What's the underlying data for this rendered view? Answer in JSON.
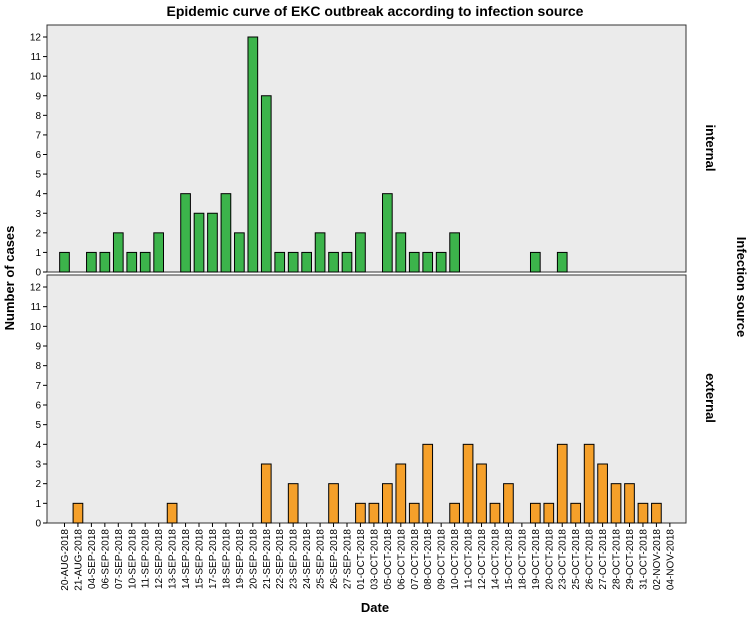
{
  "chart_data": {
    "type": "bar",
    "title": "Epidemic curve of EKC outbreak according to infection source",
    "xlabel": "Date",
    "ylabel": "Number of cases",
    "facet_label": "Infection source",
    "ylim": [
      0,
      12
    ],
    "yticks": [
      0,
      1,
      2,
      3,
      4,
      5,
      6,
      7,
      8,
      9,
      10,
      11,
      12
    ],
    "grid": false,
    "categories": [
      "20-AUG-2018",
      "21-AUG-2018",
      "04-SEP-2018",
      "06-SEP-2018",
      "07-SEP-2018",
      "10-SEP-2018",
      "11-SEP-2018",
      "12-SEP-2018",
      "13-SEP-2018",
      "14-SEP-2018",
      "15-SEP-2018",
      "17-SEP-2018",
      "18-SEP-2018",
      "19-SEP-2018",
      "20-SEP-2018",
      "21-SEP-2018",
      "22-SEP-2018",
      "23-SEP-2018",
      "24-SEP-2018",
      "25-SEP-2018",
      "26-SEP-2018",
      "27-SEP-2018",
      "01-OCT-2018",
      "03-OCT-2018",
      "05-OCT-2018",
      "06-OCT-2018",
      "07-OCT-2018",
      "08-OCT-2018",
      "09-OCT-2018",
      "10-OCT-2018",
      "11-OCT-2018",
      "12-OCT-2018",
      "14-OCT-2018",
      "15-OCT-2018",
      "18-OCT-2018",
      "19-OCT-2018",
      "20-OCT-2018",
      "23-OCT-2018",
      "25-OCT-2018",
      "26-OCT-2018",
      "27-OCT-2018",
      "28-OCT-2018",
      "29-OCT-2018",
      "31-OCT-2018",
      "02-NOV-2018",
      "04-NOV-2018"
    ],
    "series": [
      {
        "name": "internal",
        "color": "#3cb44b",
        "values": [
          1,
          0,
          1,
          1,
          2,
          1,
          1,
          2,
          0,
          4,
          3,
          3,
          4,
          2,
          12,
          9,
          1,
          1,
          1,
          2,
          1,
          1,
          2,
          0,
          4,
          2,
          1,
          1,
          1,
          2,
          0,
          0,
          0,
          0,
          0,
          1,
          0,
          1,
          0,
          0,
          0,
          0,
          0,
          0,
          0,
          0
        ]
      },
      {
        "name": "external",
        "color": "#f5a02a",
        "values": [
          0,
          1,
          0,
          0,
          0,
          0,
          0,
          0,
          1,
          0,
          0,
          0,
          0,
          0,
          0,
          3,
          0,
          2,
          0,
          0,
          2,
          0,
          1,
          1,
          2,
          3,
          1,
          4,
          0,
          1,
          4,
          3,
          1,
          2,
          0,
          1,
          1,
          4,
          1,
          4,
          3,
          2,
          2,
          1,
          1,
          0
        ]
      }
    ]
  }
}
